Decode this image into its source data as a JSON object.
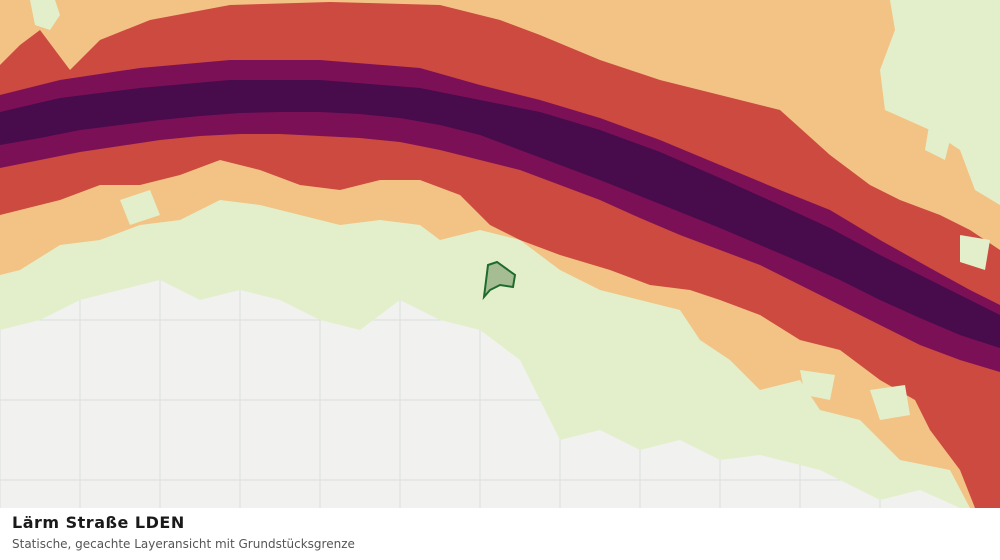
{
  "map": {
    "colors": {
      "background": "#f1f2f0",
      "grid": "#dcdedb",
      "band_1": "#e3efcb",
      "band_2": "#f2c384",
      "band_3": "#cd4a40",
      "band_4": "#7b1056",
      "band_5": "#480b4c",
      "parcel_fill": "#9bb38a",
      "parcel_stroke": "#1e6b2e"
    },
    "parcel_label": "Grundstücksgrenze"
  },
  "caption": {
    "title": "Lärm Straße LDEN",
    "subtitle": "Statische, gecachte Layeransicht mit Grundstücksgrenze"
  }
}
